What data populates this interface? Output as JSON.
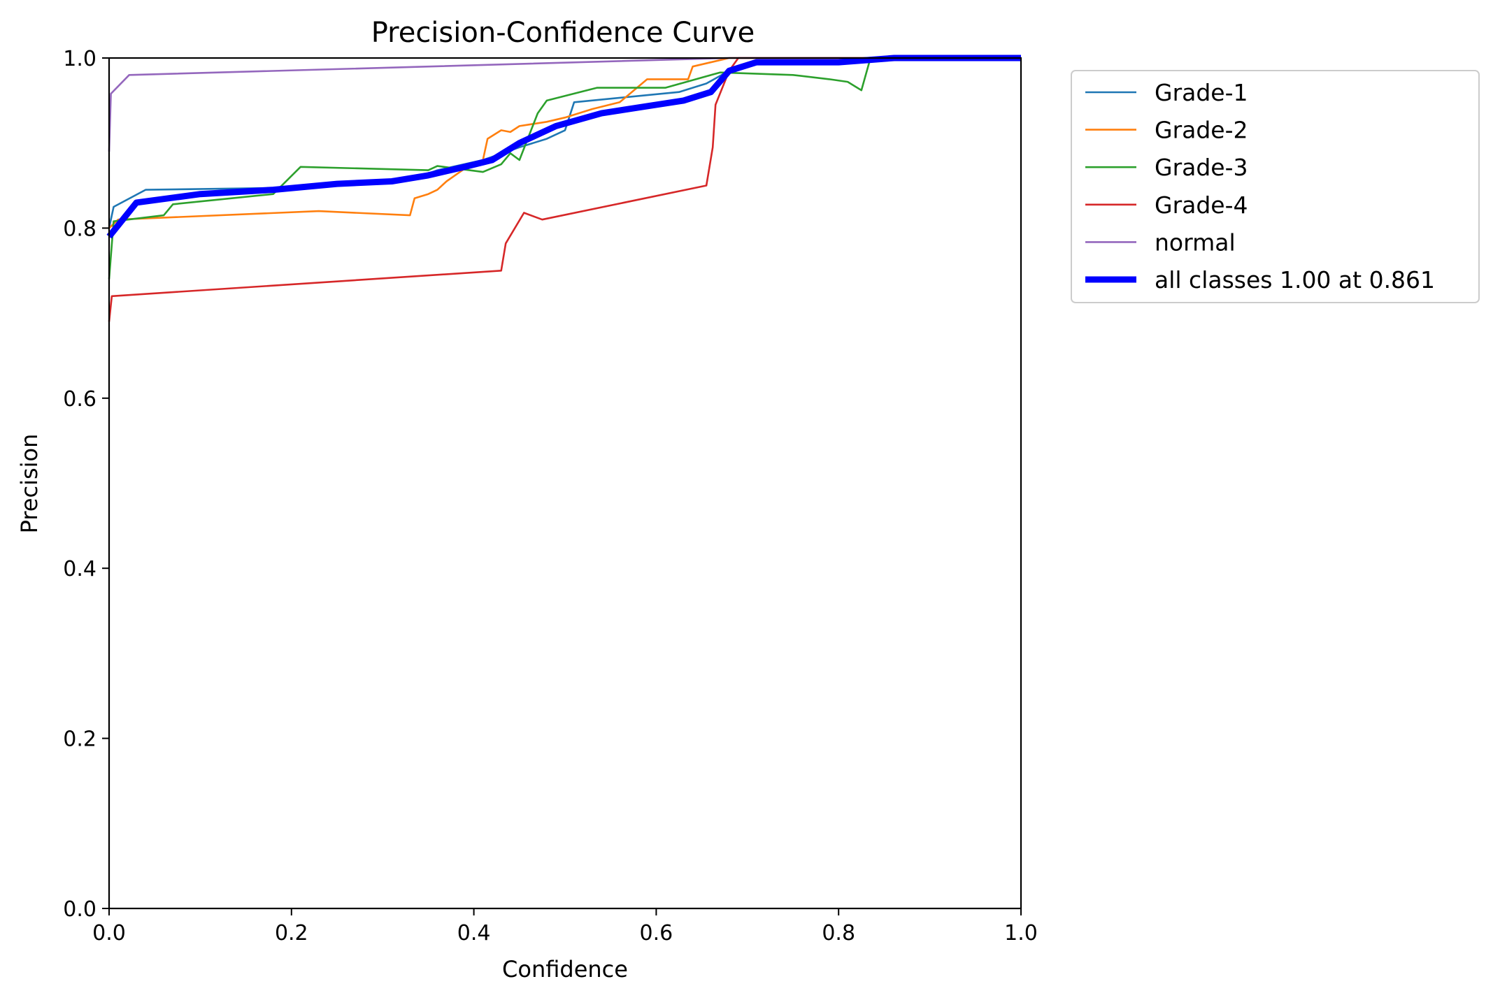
{
  "chart_data": {
    "type": "line",
    "title": "Precision-Confidence Curve",
    "xlabel": "Confidence",
    "ylabel": "Precision",
    "xlim": [
      0.0,
      1.0
    ],
    "ylim": [
      0.0,
      1.0
    ],
    "xticks": [
      "0.0",
      "0.2",
      "0.4",
      "0.6",
      "0.8",
      "1.0"
    ],
    "yticks": [
      "0.0",
      "0.2",
      "0.4",
      "0.6",
      "0.8",
      "1.0"
    ],
    "grid": false,
    "legend_position": "upper-right-outside",
    "series": [
      {
        "name": "Grade-1",
        "color": "#1f77b4",
        "line": "thin",
        "points": [
          [
            0.0,
            0.8
          ],
          [
            0.005,
            0.825
          ],
          [
            0.04,
            0.845
          ],
          [
            0.17,
            0.847
          ],
          [
            0.25,
            0.85
          ],
          [
            0.33,
            0.856
          ],
          [
            0.36,
            0.868
          ],
          [
            0.41,
            0.88
          ],
          [
            0.45,
            0.895
          ],
          [
            0.48,
            0.905
          ],
          [
            0.5,
            0.915
          ],
          [
            0.51,
            0.948
          ],
          [
            0.625,
            0.96
          ],
          [
            0.655,
            0.97
          ],
          [
            0.68,
            0.985
          ],
          [
            0.7,
            0.993
          ],
          [
            0.8,
            0.996
          ],
          [
            0.85,
            1.0
          ],
          [
            1.0,
            1.0
          ]
        ]
      },
      {
        "name": "Grade-2",
        "color": "#ff7f0e",
        "line": "thin",
        "points": [
          [
            0.0,
            0.8
          ],
          [
            0.01,
            0.81
          ],
          [
            0.23,
            0.82
          ],
          [
            0.33,
            0.815
          ],
          [
            0.335,
            0.835
          ],
          [
            0.35,
            0.84
          ],
          [
            0.36,
            0.845
          ],
          [
            0.37,
            0.855
          ],
          [
            0.39,
            0.87
          ],
          [
            0.41,
            0.88
          ],
          [
            0.415,
            0.905
          ],
          [
            0.43,
            0.915
          ],
          [
            0.44,
            0.913
          ],
          [
            0.45,
            0.92
          ],
          [
            0.48,
            0.925
          ],
          [
            0.5,
            0.93
          ],
          [
            0.53,
            0.94
          ],
          [
            0.56,
            0.948
          ],
          [
            0.59,
            0.975
          ],
          [
            0.635,
            0.975
          ],
          [
            0.64,
            0.99
          ],
          [
            0.68,
            1.0
          ],
          [
            1.0,
            1.0
          ]
        ]
      },
      {
        "name": "Grade-3",
        "color": "#2ca02c",
        "line": "thin",
        "points": [
          [
            0.0,
            0.74
          ],
          [
            0.005,
            0.808
          ],
          [
            0.06,
            0.815
          ],
          [
            0.07,
            0.828
          ],
          [
            0.18,
            0.84
          ],
          [
            0.21,
            0.872
          ],
          [
            0.35,
            0.868
          ],
          [
            0.36,
            0.873
          ],
          [
            0.41,
            0.866
          ],
          [
            0.43,
            0.875
          ],
          [
            0.44,
            0.888
          ],
          [
            0.45,
            0.88
          ],
          [
            0.47,
            0.935
          ],
          [
            0.48,
            0.95
          ],
          [
            0.535,
            0.965
          ],
          [
            0.61,
            0.965
          ],
          [
            0.67,
            0.983
          ],
          [
            0.75,
            0.98
          ],
          [
            0.79,
            0.975
          ],
          [
            0.81,
            0.972
          ],
          [
            0.825,
            0.962
          ],
          [
            0.835,
            1.0
          ],
          [
            1.0,
            1.0
          ]
        ]
      },
      {
        "name": "Grade-4",
        "color": "#d62728",
        "line": "thin",
        "points": [
          [
            0.0,
            0.69
          ],
          [
            0.003,
            0.72
          ],
          [
            0.43,
            0.75
          ],
          [
            0.435,
            0.782
          ],
          [
            0.455,
            0.818
          ],
          [
            0.475,
            0.81
          ],
          [
            0.655,
            0.85
          ],
          [
            0.662,
            0.895
          ],
          [
            0.665,
            0.945
          ],
          [
            0.68,
            0.985
          ],
          [
            0.69,
            1.0
          ],
          [
            1.0,
            1.0
          ]
        ]
      },
      {
        "name": "normal",
        "color": "#9467bd",
        "line": "thin",
        "points": [
          [
            0.0,
            0.89
          ],
          [
            0.002,
            0.958
          ],
          [
            0.022,
            0.98
          ],
          [
            0.68,
            1.0
          ],
          [
            1.0,
            1.0
          ]
        ]
      },
      {
        "name": "all classes 1.00 at 0.861",
        "color": "#0000ff",
        "line": "thick",
        "points": [
          [
            0.0,
            0.79
          ],
          [
            0.015,
            0.81
          ],
          [
            0.03,
            0.83
          ],
          [
            0.1,
            0.84
          ],
          [
            0.18,
            0.845
          ],
          [
            0.25,
            0.852
          ],
          [
            0.31,
            0.855
          ],
          [
            0.35,
            0.862
          ],
          [
            0.39,
            0.872
          ],
          [
            0.42,
            0.88
          ],
          [
            0.45,
            0.9
          ],
          [
            0.49,
            0.92
          ],
          [
            0.54,
            0.935
          ],
          [
            0.6,
            0.945
          ],
          [
            0.63,
            0.95
          ],
          [
            0.66,
            0.96
          ],
          [
            0.68,
            0.985
          ],
          [
            0.71,
            0.995
          ],
          [
            0.8,
            0.995
          ],
          [
            0.861,
            1.0
          ],
          [
            1.0,
            1.0
          ]
        ]
      }
    ]
  }
}
